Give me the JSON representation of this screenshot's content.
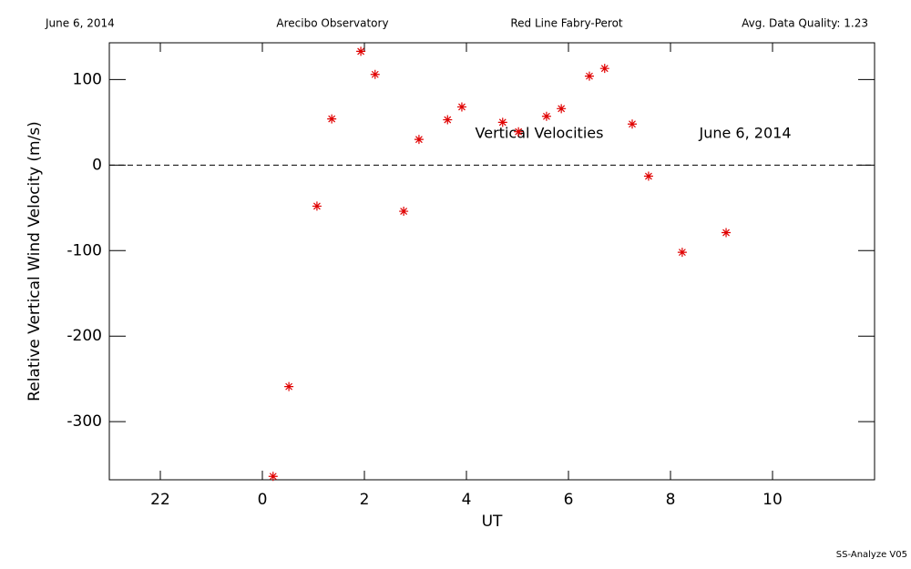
{
  "header": {
    "date": "June 6, 2014",
    "site": "Arecibo Observatory",
    "instrument": "Red Line Fabry-Perot",
    "quality": "Avg. Data Quality: 1.23"
  },
  "footer": "SS-Analyze V05",
  "chart_data": {
    "type": "scatter",
    "xlabel": "UT",
    "ylabel": "Relative Vertical Wind Velocity (m/s)",
    "annotations": [
      "Vertical Velocities",
      "June 6, 2014"
    ],
    "xlim": [
      21,
      36
    ],
    "ylim": [
      -368,
      143
    ],
    "xticks": [
      {
        "value": 22,
        "label": "22"
      },
      {
        "value": 24,
        "label": "0"
      },
      {
        "value": 26,
        "label": "2"
      },
      {
        "value": 28,
        "label": "4"
      },
      {
        "value": 30,
        "label": "6"
      },
      {
        "value": 32,
        "label": "8"
      },
      {
        "value": 34,
        "label": "10"
      }
    ],
    "yticks": [
      -300,
      -200,
      -100,
      0,
      100
    ],
    "reference_line": 0,
    "color": "#e00000",
    "x": [
      24.21,
      24.52,
      25.07,
      25.36,
      25.93,
      26.21,
      26.77,
      27.07,
      27.63,
      27.91,
      28.71,
      29.02,
      29.57,
      29.86,
      30.41,
      30.71,
      31.25,
      31.57,
      32.23,
      33.09
    ],
    "values": [
      -364,
      -259,
      -48,
      54,
      133,
      106,
      -54,
      30,
      53,
      68,
      50,
      39,
      57,
      66,
      104,
      113,
      48,
      -13,
      -102,
      -79
    ]
  }
}
